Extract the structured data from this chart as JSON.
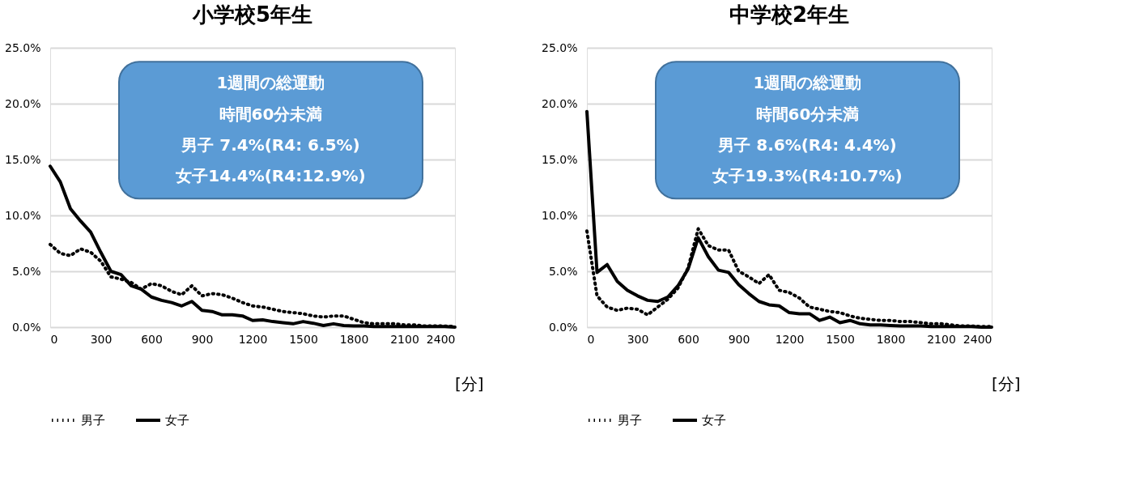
{
  "chart_data": [
    {
      "type": "line",
      "title": "小学校5年生",
      "xlabel": "[分]",
      "x": [
        0,
        60,
        120,
        180,
        240,
        300,
        360,
        420,
        480,
        540,
        600,
        660,
        720,
        780,
        840,
        900,
        960,
        1020,
        1080,
        1140,
        1200,
        1260,
        1320,
        1380,
        1440,
        1500,
        1560,
        1620,
        1680,
        1740,
        1800,
        1860,
        1920,
        1980,
        2040,
        2100,
        2160,
        2220,
        2280,
        2340,
        2400
      ],
      "series": [
        {
          "name": "男子",
          "color": "#000000",
          "line_style": "dotted",
          "values": [
            7.4,
            6.6,
            6.4,
            7.0,
            6.7,
            5.9,
            4.5,
            4.3,
            4.0,
            3.4,
            3.9,
            3.7,
            3.2,
            2.9,
            3.7,
            2.8,
            3.0,
            2.9,
            2.6,
            2.2,
            1.9,
            1.8,
            1.6,
            1.4,
            1.3,
            1.2,
            1.0,
            0.9,
            1.0,
            1.0,
            0.7,
            0.4,
            0.3,
            0.3,
            0.3,
            0.2,
            0.2,
            0.1,
            0.1,
            0.1,
            0.05
          ]
        },
        {
          "name": "女子",
          "color": "#000000",
          "line_style": "solid",
          "values": [
            14.4,
            13.0,
            10.6,
            9.5,
            8.5,
            6.7,
            5.0,
            4.7,
            3.7,
            3.4,
            2.7,
            2.4,
            2.2,
            1.9,
            2.3,
            1.5,
            1.4,
            1.1,
            1.1,
            1.0,
            0.6,
            0.65,
            0.5,
            0.4,
            0.3,
            0.5,
            0.35,
            0.15,
            0.3,
            0.15,
            0.1,
            0.1,
            0.05,
            0.05,
            0.05,
            0.05,
            0.05,
            0.05,
            0.05,
            0.05,
            0.0
          ]
        }
      ],
      "xlim": [
        0,
        2400
      ],
      "xticks": [
        0,
        300,
        600,
        900,
        1200,
        1500,
        1800,
        2100,
        2400
      ],
      "ylim": [
        0,
        25
      ],
      "yticks": [
        {
          "value": 0,
          "label": "0.0%"
        },
        {
          "value": 5,
          "label": "5.0%"
        },
        {
          "value": 10,
          "label": "10.0%"
        },
        {
          "value": 15,
          "label": "15.0%"
        },
        {
          "value": 20,
          "label": "20.0%"
        },
        {
          "value": 25,
          "label": "25.0%"
        }
      ],
      "grid": "y",
      "legend": "bottom",
      "annotations": [
        "1週間の総運動",
        "時間60分未満",
        "男子 7.4%(R4: 6.5%)",
        "女子14.4%(R4:12.9%)"
      ]
    },
    {
      "type": "line",
      "title": "中学校2年生",
      "xlabel": "[分]",
      "x": [
        0,
        60,
        120,
        180,
        240,
        300,
        360,
        420,
        480,
        540,
        600,
        660,
        720,
        780,
        840,
        900,
        960,
        1020,
        1080,
        1140,
        1200,
        1260,
        1320,
        1380,
        1440,
        1500,
        1560,
        1620,
        1680,
        1740,
        1800,
        1860,
        1920,
        1980,
        2040,
        2100,
        2160,
        2220,
        2280,
        2340,
        2400
      ],
      "series": [
        {
          "name": "男子",
          "color": "#000000",
          "line_style": "dotted",
          "values": [
            8.6,
            2.8,
            1.8,
            1.5,
            1.7,
            1.6,
            1.1,
            1.8,
            2.5,
            3.5,
            5.3,
            8.8,
            7.3,
            6.9,
            6.9,
            5.0,
            4.5,
            3.9,
            4.7,
            3.3,
            3.1,
            2.6,
            1.8,
            1.6,
            1.4,
            1.3,
            1.0,
            0.8,
            0.7,
            0.6,
            0.6,
            0.5,
            0.5,
            0.4,
            0.3,
            0.3,
            0.2,
            0.1,
            0.1,
            0.05,
            0.05
          ]
        },
        {
          "name": "女子",
          "color": "#000000",
          "line_style": "solid",
          "values": [
            19.3,
            4.9,
            5.6,
            4.1,
            3.3,
            2.8,
            2.4,
            2.3,
            2.7,
            3.7,
            5.2,
            8.0,
            6.3,
            5.1,
            4.9,
            3.8,
            3.0,
            2.3,
            2.0,
            1.9,
            1.3,
            1.2,
            1.2,
            0.6,
            0.9,
            0.4,
            0.6,
            0.3,
            0.2,
            0.2,
            0.15,
            0.1,
            0.1,
            0.1,
            0.05,
            0.05,
            0.05,
            0.05,
            0.05,
            0.0,
            0.0
          ]
        }
      ],
      "xlim": [
        0,
        2400
      ],
      "xticks": [
        0,
        300,
        600,
        900,
        1200,
        1500,
        1800,
        2100,
        2400
      ],
      "ylim": [
        0,
        25
      ],
      "yticks": [
        {
          "value": 0,
          "label": "0.0%"
        },
        {
          "value": 5,
          "label": "5.0%"
        },
        {
          "value": 10,
          "label": "10.0%"
        },
        {
          "value": 15,
          "label": "15.0%"
        },
        {
          "value": 20,
          "label": "20.0%"
        },
        {
          "value": 25,
          "label": "25.0%"
        }
      ],
      "grid": "y",
      "legend": "bottom",
      "annotations": [
        "1週間の総運動",
        "時間60分未満",
        "男子 8.6%(R4: 4.4%)",
        "女子19.3%(R4:10.7%)"
      ]
    }
  ]
}
